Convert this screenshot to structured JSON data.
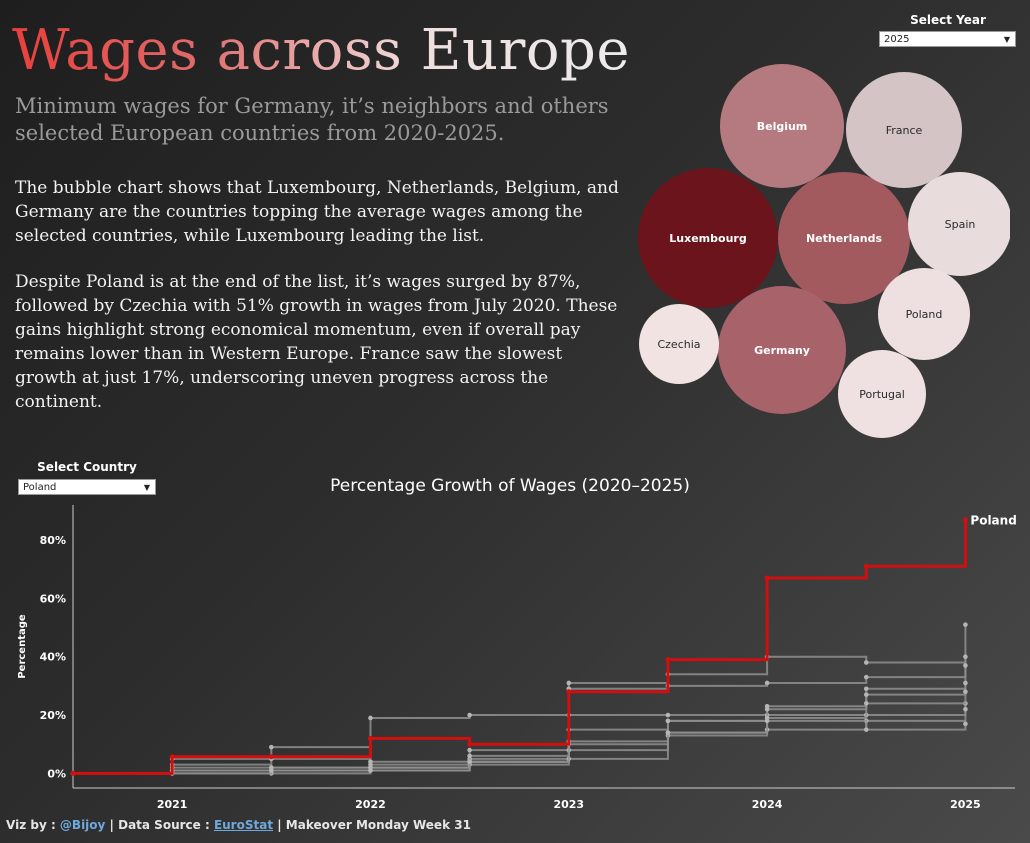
{
  "header": {
    "title": "Wages across Europe",
    "subtitle": "Minimum wages for Germany, it’s neighbors and others selected European countries from 2020-2025.",
    "paragraph1": "The bubble chart shows that Luxembourg, Netherlands, Belgium, and Germany are the countries topping the average wages among the selected countries, while Luxembourg leading the list.",
    "paragraph2": "Despite Poland is at the end of the list, it’s wages surged by 87%, followed by Czechia with 51% growth in wages from July 2020. These gains highlight strong economical momentum, even if overall pay remains lower than in Western Europe. France saw the slowest growth at just 17%, underscoring uneven progress across the continent."
  },
  "controls": {
    "year_label": "Select Year",
    "year_value": "2025",
    "country_label": "Select Country",
    "country_value": "Poland"
  },
  "footer": {
    "viz_by": "Viz by : ",
    "handle": "@Bijoy",
    "sep1": " | Data Source : ",
    "source": "EuroStat",
    "sep2": "  | Makeover Monday Week 31"
  },
  "colors": {
    "highlight": "#d10f0f",
    "other_lines": "#8f8f8f",
    "bubble_dark": "#6b141c",
    "bubble_light": "#f0e0e0"
  },
  "chart_data": [
    {
      "type": "bubble",
      "selected_year": "2025",
      "bubbles": [
        {
          "label": "Luxembourg",
          "rank": 1,
          "color": "#6b141c"
        },
        {
          "label": "Netherlands",
          "rank": 2,
          "color": "#a25a5f"
        },
        {
          "label": "Germany",
          "rank": 3,
          "color": "#a8636a"
        },
        {
          "label": "Belgium",
          "rank": 4,
          "color": "#b47a7f"
        },
        {
          "label": "France",
          "rank": 5,
          "color": "#d4c4c5"
        },
        {
          "label": "Spain",
          "rank": 6,
          "color": "#e8dcdc"
        },
        {
          "label": "Poland",
          "rank": 7,
          "color": "#eee0e0"
        },
        {
          "label": "Portugal",
          "rank": 8,
          "color": "#efe1e1"
        },
        {
          "label": "Czechia",
          "rank": 9,
          "color": "#f2e3e3"
        }
      ]
    },
    {
      "type": "line",
      "title": "Percentage Growth of Wages (2020–2025)",
      "xlabel": "",
      "ylabel": "Percentage",
      "x_ticks": [
        "2021",
        "2022",
        "2023",
        "2024",
        "2025"
      ],
      "y_ticks": [
        "0%",
        "20%",
        "40%",
        "60%",
        "80%"
      ],
      "ylim": [
        -5,
        92
      ],
      "xlim": [
        2020.5,
        2025.25
      ],
      "periods": [
        2020.5,
        2021,
        2021.5,
        2022,
        2022.5,
        2023,
        2023.5,
        2024,
        2024.5,
        2025
      ],
      "highlight": {
        "name": "Poland",
        "values": [
          0,
          5.7,
          5.7,
          12,
          10,
          28,
          39,
          67,
          71,
          87
        ]
      },
      "series": [
        {
          "values": [
            0,
            5,
            9,
            19,
            20,
            20,
            20,
            20,
            20,
            24
          ]
        },
        {
          "values": [
            0,
            3,
            5,
            4,
            8,
            31,
            34,
            40,
            38,
            51
          ]
        },
        {
          "values": [
            0,
            2,
            2,
            2,
            5,
            29,
            30,
            31,
            33,
            40
          ]
        },
        {
          "values": [
            0,
            1,
            1,
            1,
            3,
            11,
            18,
            23,
            29,
            37
          ]
        },
        {
          "values": [
            0,
            1,
            2,
            3,
            6,
            15,
            18,
            22,
            27,
            31
          ]
        },
        {
          "values": [
            0,
            0,
            0,
            2,
            4,
            8,
            14,
            19,
            24,
            28
          ]
        },
        {
          "values": [
            0,
            0,
            1,
            2,
            4,
            5,
            13,
            15,
            18,
            22
          ]
        },
        {
          "values": [
            0,
            1,
            1,
            1,
            4,
            10,
            14,
            18,
            15,
            17
          ]
        }
      ]
    }
  ]
}
